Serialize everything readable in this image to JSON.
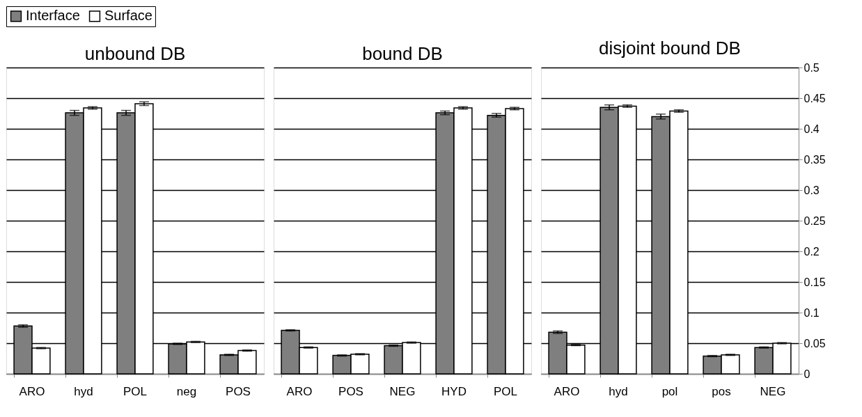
{
  "chart_data": [
    {
      "type": "bar",
      "title": "unbound DB",
      "categories": [
        "ARO",
        "hyd",
        "POL",
        "neg",
        "POS"
      ],
      "ylim": [
        0,
        0.5
      ],
      "yticks": [
        0,
        0.05,
        0.1,
        0.15,
        0.2,
        0.25,
        0.3,
        0.35,
        0.4,
        0.45,
        0.5
      ],
      "grid": "y",
      "legend": "top",
      "tick_labels": "x",
      "series": [
        {
          "name": "Interface",
          "color": "#7f7f7f",
          "values": [
            0.078,
            0.426,
            0.426,
            0.049,
            0.031
          ],
          "errors": [
            0.002,
            0.004,
            0.004,
            0.001,
            0.001
          ]
        },
        {
          "name": "Surface",
          "color": "#ffffff",
          "values": [
            0.042,
            0.434,
            0.441,
            0.052,
            0.038
          ],
          "errors": [
            0.001,
            0.002,
            0.003,
            0.001,
            0.001
          ]
        }
      ]
    },
    {
      "type": "bar",
      "title": "bound DB",
      "categories": [
        "ARO",
        "POS",
        "NEG",
        "HYD",
        "POL"
      ],
      "ylim": [
        0,
        0.5
      ],
      "yticks": [
        0,
        0.05,
        0.1,
        0.15,
        0.2,
        0.25,
        0.3,
        0.35,
        0.4,
        0.45,
        0.5
      ],
      "grid": "y",
      "tick_labels": "x",
      "series": [
        {
          "name": "Interface",
          "color": "#7f7f7f",
          "values": [
            0.071,
            0.03,
            0.046,
            0.426,
            0.422
          ],
          "errors": [
            0.001,
            0.001,
            0.001,
            0.003,
            0.003
          ]
        },
        {
          "name": "Surface",
          "color": "#ffffff",
          "values": [
            0.043,
            0.032,
            0.051,
            0.434,
            0.433
          ],
          "errors": [
            0.001,
            0.001,
            0.001,
            0.002,
            0.002
          ]
        }
      ]
    },
    {
      "type": "bar",
      "title": "disjoint bound DB",
      "categories": [
        "ARO",
        "hyd",
        "pol",
        "pos",
        "NEG"
      ],
      "ylim": [
        0,
        0.5
      ],
      "yticks": [
        0,
        0.05,
        0.1,
        0.15,
        0.2,
        0.25,
        0.3,
        0.35,
        0.4,
        0.45,
        0.5
      ],
      "grid": "y",
      "series": [
        {
          "name": "Interface",
          "color": "#7f7f7f",
          "values": [
            0.068,
            0.435,
            0.42,
            0.029,
            0.043
          ],
          "errors": [
            0.002,
            0.004,
            0.004,
            0.001,
            0.001
          ]
        },
        {
          "name": "Surface",
          "color": "#ffffff",
          "values": [
            0.047,
            0.437,
            0.429,
            0.031,
            0.05
          ],
          "errors": [
            0.001,
            0.002,
            0.002,
            0.001,
            0.001
          ]
        }
      ]
    }
  ]
}
